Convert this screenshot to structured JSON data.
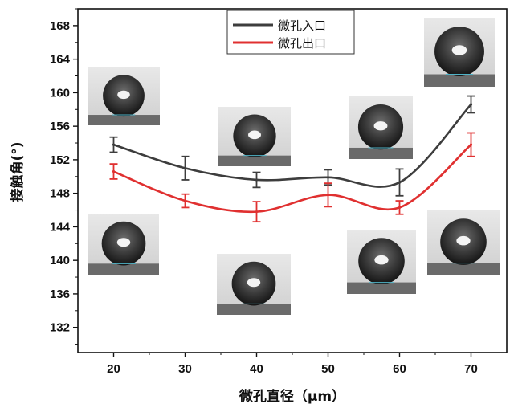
{
  "chart_data": {
    "type": "line",
    "xlabel": "微孔直径（μm）",
    "ylabel": "接触角(°)",
    "x": [
      20,
      30,
      40,
      50,
      60,
      70
    ],
    "xlim": [
      15,
      75
    ],
    "xticks": [
      20,
      30,
      40,
      50,
      60,
      70
    ],
    "ylim": [
      129,
      170
    ],
    "yticks": [
      132,
      136,
      140,
      144,
      148,
      152,
      156,
      160,
      164,
      168
    ],
    "grid": false,
    "legend_position": "top-center",
    "series": [
      {
        "name": "微孔入口",
        "color": "#3d3d3d",
        "values": [
          153.8,
          151.0,
          149.6,
          149.9,
          149.3,
          158.6
        ],
        "errors": [
          0.9,
          1.4,
          0.9,
          0.9,
          1.6,
          1.0
        ]
      },
      {
        "name": "微孔出口",
        "color": "#e03030",
        "values": [
          150.6,
          147.1,
          145.8,
          147.8,
          146.3,
          153.8
        ],
        "errors": [
          0.9,
          0.8,
          1.2,
          1.4,
          0.8,
          1.4
        ]
      }
    ]
  }
}
